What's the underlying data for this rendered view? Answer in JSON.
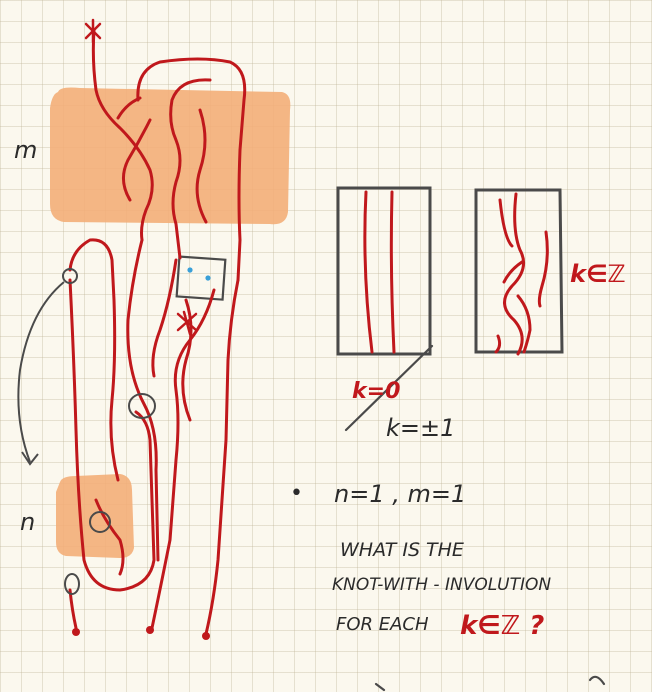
{
  "labels": {
    "m": "m",
    "n": "n",
    "tangle_k_zero": "k=0",
    "tangle_k_one": "k=±1",
    "tangle_k_in_Z": "k∈ℤ"
  },
  "note": {
    "bullet": "•",
    "params": "n=1 , m=1",
    "line1": "WHAT IS THE",
    "line2": "KNOT-WITH - INVOLUTION",
    "line3_text": "FOR EACH",
    "line3_math": "k∈ℤ ?"
  },
  "colors": {
    "strand": "#c0181c",
    "box_fill": "#f3ae78",
    "ink": "#4a4a4a",
    "dot": "#3aa0d8",
    "paper": "#fbf8ee"
  }
}
